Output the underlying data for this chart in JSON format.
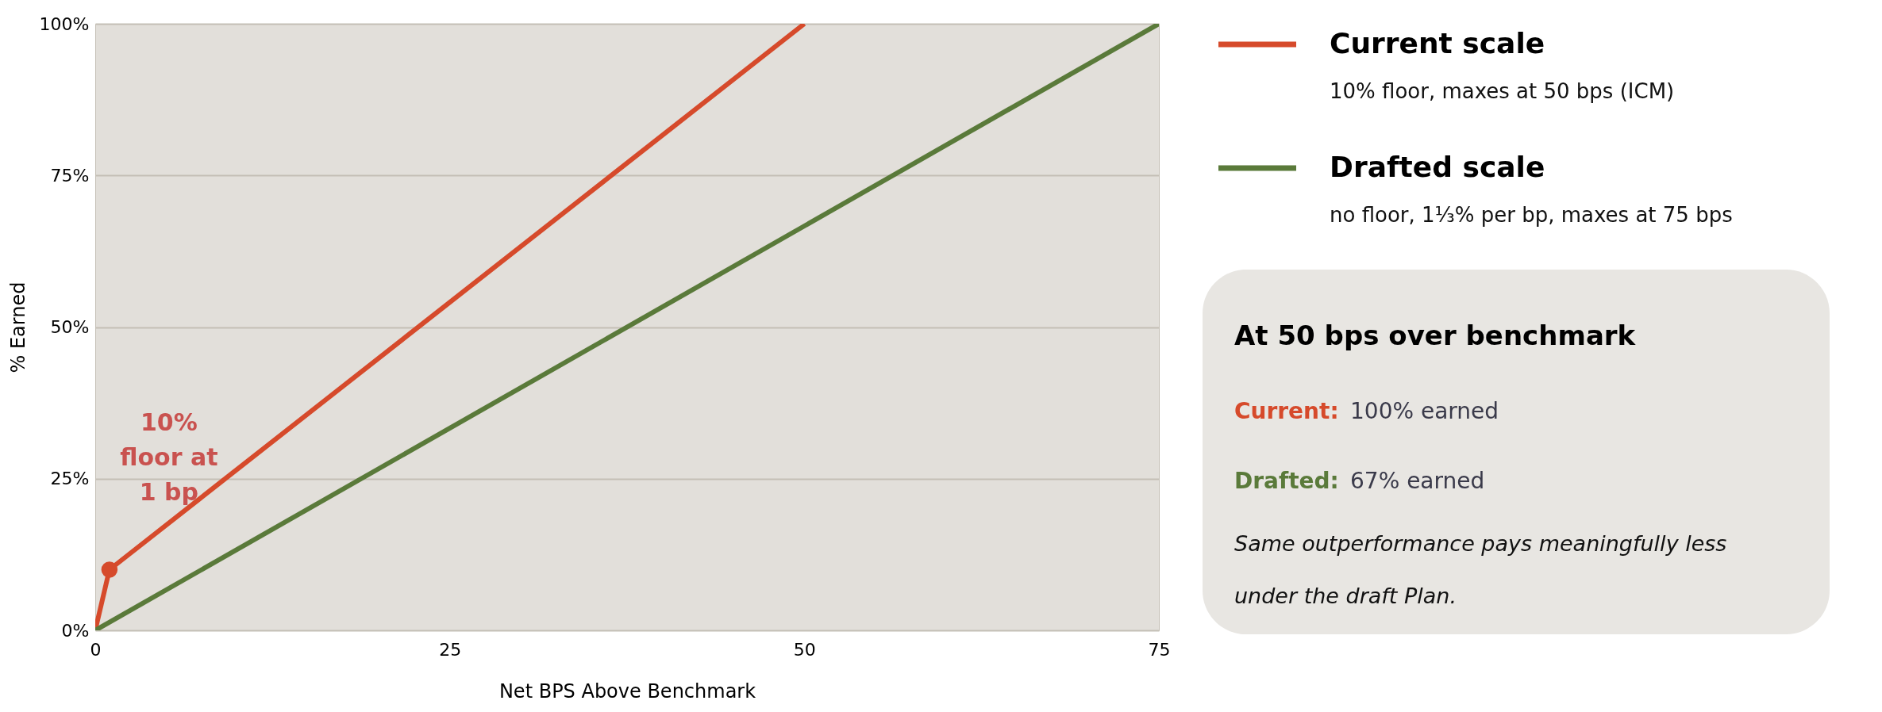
{
  "chart_data": {
    "type": "line",
    "xlabel": "Net BPS Above Benchmark",
    "ylabel": "% Earned",
    "xlim": [
      0,
      75
    ],
    "xticks": [
      0,
      25,
      50,
      75
    ],
    "ylim": [
      0,
      100
    ],
    "yticks": [
      {
        "value": 0,
        "label": "0%"
      },
      {
        "value": 25,
        "label": "25%"
      },
      {
        "value": 50,
        "label": "50%"
      },
      {
        "value": 75,
        "label": "75%"
      },
      {
        "value": 100,
        "label": "100%"
      }
    ],
    "grid": "y",
    "legend": "right",
    "line_style": "solid",
    "series": [
      {
        "name": "Current scale",
        "color": "#d64a2b",
        "x": [
          0,
          1,
          50
        ],
        "values": [
          0,
          10,
          100
        ]
      },
      {
        "name": "Drafted scale",
        "color": "#5a7a3a",
        "x": [
          0,
          75
        ],
        "values": [
          0,
          100
        ]
      },
      {
        "type": "scatter",
        "marker": "circle",
        "color": "#d64a2b",
        "x": [
          1
        ],
        "values": [
          10
        ]
      }
    ],
    "annotations": [
      {
        "text": "10%\nfloor at\n1 bp",
        "x": 1,
        "y": 10
      },
      "10% floor, maxes at 50 bps (ICM)",
      "no floor, 1⅓% per bp, maxes at 75 bps",
      "At 50 bps over benchmark",
      "Current:",
      "100% earned",
      "Drafted:",
      "67% earned",
      "Same outperformance pays meaningfully less\nunder the draft Plan."
    ]
  }
}
